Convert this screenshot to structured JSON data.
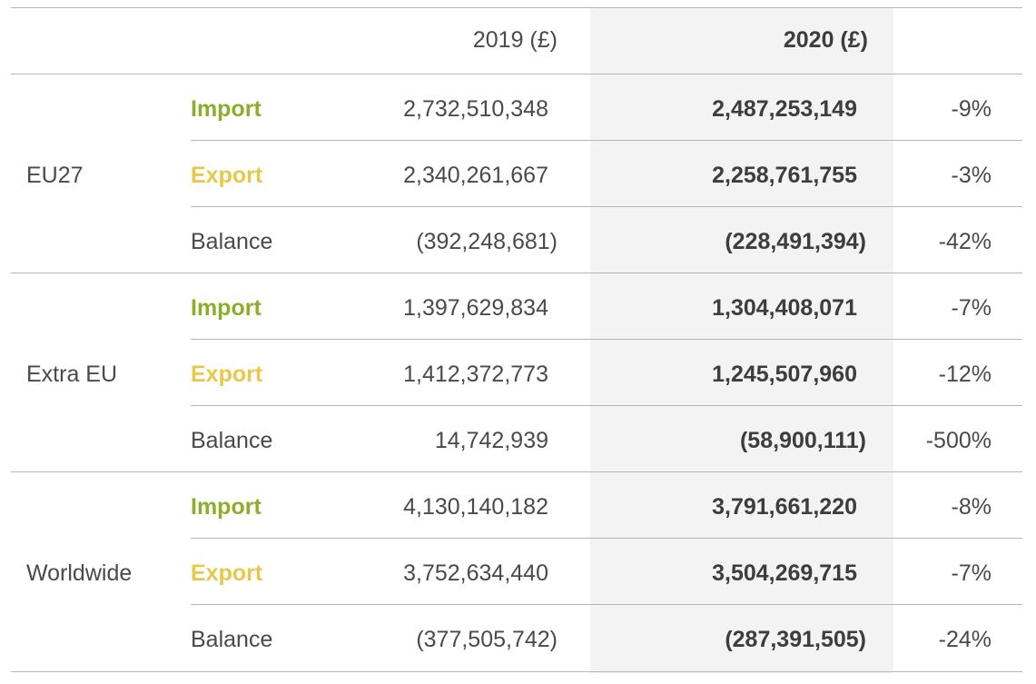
{
  "header": {
    "col_2019": "2019 (£)",
    "col_2020": "2020 (£)"
  },
  "groups": [
    {
      "region": "EU27",
      "rows": [
        {
          "type": "Import",
          "v2019": "2,732,510,348",
          "v2020": "2,487,253,149",
          "change": "-9%"
        },
        {
          "type": "Export",
          "v2019": "2,340,261,667",
          "v2020": "2,258,761,755",
          "change": "-3%"
        },
        {
          "type": "Balance",
          "v2019": "(392,248,681)",
          "v2020": "(228,491,394)",
          "change": "-42%"
        }
      ]
    },
    {
      "region": "Extra EU",
      "rows": [
        {
          "type": "Import",
          "v2019": "1,397,629,834",
          "v2020": "1,304,408,071",
          "change": "-7%"
        },
        {
          "type": "Export",
          "v2019": "1,412,372,773",
          "v2020": "1,245,507,960",
          "change": "-12%"
        },
        {
          "type": "Balance",
          "v2019": "14,742,939",
          "v2020": "(58,900,111)",
          "change": "-500%"
        }
      ]
    },
    {
      "region": "Worldwide",
      "rows": [
        {
          "type": "Import",
          "v2019": "4,130,140,182",
          "v2020": "3,791,661,220",
          "change": "-8%"
        },
        {
          "type": "Export",
          "v2019": "3,752,634,440",
          "v2020": "3,504,269,715",
          "change": "-7%"
        },
        {
          "type": "Balance",
          "v2019": "(377,505,742)",
          "v2020": "(287,391,505)",
          "change": "-24%"
        }
      ]
    }
  ],
  "colors": {
    "import": "#8cae2a",
    "export": "#e6c84a",
    "highlight_column": "#f3f3f3",
    "rule": "#b5b5b5"
  }
}
